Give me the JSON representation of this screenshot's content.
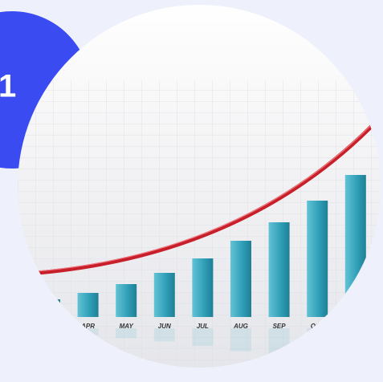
{
  "badge": "1",
  "chart_data": {
    "type": "bar",
    "categories": [
      null,
      "APR",
      "MAY",
      "JUN",
      "JUL",
      "AUG",
      "SEP",
      "OCT",
      null
    ],
    "values": [
      22,
      30,
      41,
      55,
      73,
      95,
      118,
      145,
      177
    ],
    "color": "#33a7be"
  }
}
